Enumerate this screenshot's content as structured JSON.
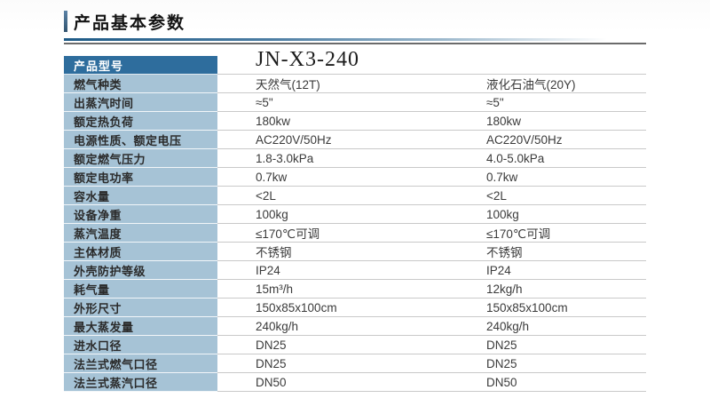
{
  "page": {
    "title": "产品基本参数"
  },
  "colors": {
    "header_cell_blue": "#2e6d9d",
    "row_cell_blue": "#a6c3d6",
    "title_accent_bar": "#31536f",
    "underline_blue": "#1d5a86",
    "underline_gray": "#6b6b6b",
    "row_separator": "#c9c9c9"
  },
  "table": {
    "model_row": {
      "label": "产品型号",
      "value": "JN-X3-240"
    },
    "rows": [
      {
        "label": "燃气种类",
        "col1": "天然气(12T)",
        "col2": "液化石油气(20Y)"
      },
      {
        "label": "出蒸汽时间",
        "col1": "≈5\"",
        "col2": "≈5\""
      },
      {
        "label": "额定热负荷",
        "col1": "180kw",
        "col2": "180kw"
      },
      {
        "label": "电源性质、额定电压",
        "col1": "AC220V/50Hz",
        "col2": "AC220V/50Hz"
      },
      {
        "label": "额定燃气压力",
        "col1": "1.8-3.0kPa",
        "col2": "4.0-5.0kPa"
      },
      {
        "label": "额定电功率",
        "col1": "0.7kw",
        "col2": "0.7kw"
      },
      {
        "label": "容水量",
        "col1": "<2L",
        "col2": "<2L"
      },
      {
        "label": "设备净重",
        "col1": "100kg",
        "col2": "100kg"
      },
      {
        "label": "蒸汽温度",
        "col1": "≤170℃可调",
        "col2": "≤170℃可调"
      },
      {
        "label": "主体材质",
        "col1": "不锈钢",
        "col2": "不锈钢"
      },
      {
        "label": "外壳防护等级",
        "col1": "IP24",
        "col2": "IP24"
      },
      {
        "label": "耗气量",
        "col1": "15m³/h",
        "col2": "12kg/h"
      },
      {
        "label": "外形尺寸",
        "col1": "150x85x100cm",
        "col2": "150x85x100cm"
      },
      {
        "label": "最大蒸发量",
        "col1": "240kg/h",
        "col2": "240kg/h"
      },
      {
        "label": "进水口径",
        "col1": "DN25",
        "col2": "DN25"
      },
      {
        "label": "法兰式燃气口径",
        "col1": "DN25",
        "col2": "DN25"
      },
      {
        "label": "法兰式蒸汽口径",
        "col1": "DN50",
        "col2": "DN50"
      }
    ]
  }
}
